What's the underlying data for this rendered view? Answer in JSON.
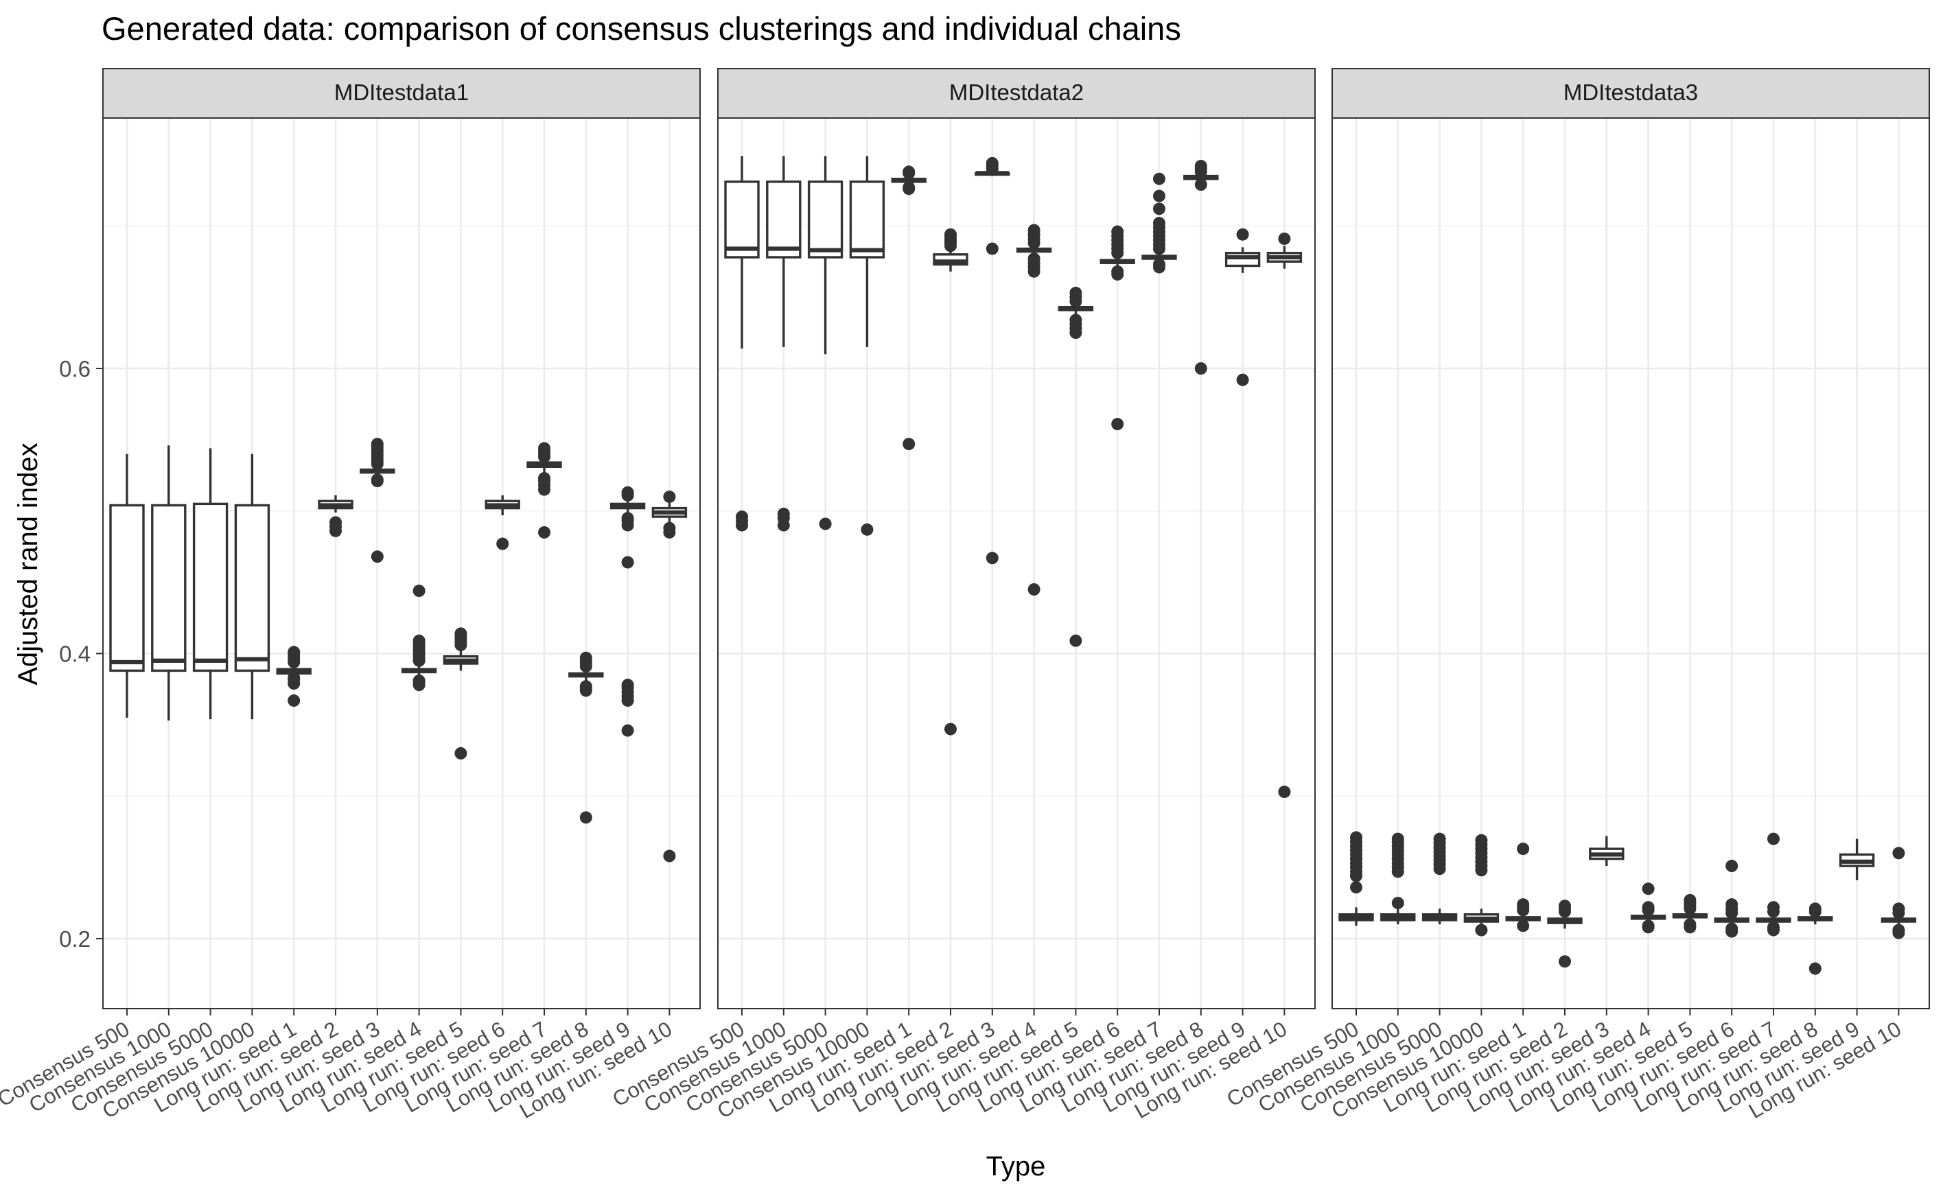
{
  "chart_data": {
    "type": "box",
    "title": "Generated data: comparison of consensus clusterings and individual chains",
    "xlabel": "Type",
    "ylabel": "Adjusted rand index",
    "ylim": [
      0.15,
      0.775
    ],
    "yticks": [
      0.2,
      0.4,
      0.6
    ],
    "ytick_labels": [
      "0.2",
      "0.4",
      "0.6"
    ],
    "categories": [
      "Consensus 500",
      "Consensus 1000",
      "Consensus 5000",
      "Consensus 10000",
      "Long run: seed 1",
      "Long run: seed 2",
      "Long run: seed 3",
      "Long run: seed 4",
      "Long run: seed 5",
      "Long run: seed 6",
      "Long run: seed 7",
      "Long run: seed 8",
      "Long run: seed 9",
      "Long run: seed 10"
    ],
    "panels": [
      {
        "name": "MDItestdata1",
        "boxes": [
          {
            "min": 0.355,
            "q1": 0.388,
            "median": 0.394,
            "q3": 0.504,
            "max": 0.54,
            "outliers": []
          },
          {
            "min": 0.353,
            "q1": 0.388,
            "median": 0.395,
            "q3": 0.504,
            "max": 0.546,
            "outliers": []
          },
          {
            "min": 0.354,
            "q1": 0.388,
            "median": 0.395,
            "q3": 0.505,
            "max": 0.544,
            "outliers": []
          },
          {
            "min": 0.354,
            "q1": 0.388,
            "median": 0.396,
            "q3": 0.504,
            "max": 0.54,
            "outliers": []
          },
          {
            "min": 0.381,
            "q1": 0.386,
            "median": 0.387,
            "q3": 0.389,
            "max": 0.393,
            "outliers": [
              0.367,
              0.379,
              0.382,
              0.383,
              0.394,
              0.396,
              0.398,
              0.4,
              0.401
            ]
          },
          {
            "min": 0.499,
            "q1": 0.502,
            "median": 0.504,
            "q3": 0.507,
            "max": 0.511,
            "outliers": [
              0.486,
              0.489,
              0.492
            ]
          },
          {
            "min": 0.523,
            "q1": 0.527,
            "median": 0.528,
            "q3": 0.529,
            "max": 0.531,
            "outliers": [
              0.468,
              0.521,
              0.522,
              0.533,
              0.535,
              0.537,
              0.539,
              0.541,
              0.543,
              0.545,
              0.547
            ]
          },
          {
            "min": 0.382,
            "q1": 0.387,
            "median": 0.388,
            "q3": 0.389,
            "max": 0.393,
            "outliers": [
              0.378,
              0.38,
              0.381,
              0.395,
              0.397,
              0.399,
              0.401,
              0.403,
              0.405,
              0.407,
              0.409,
              0.444
            ]
          },
          {
            "min": 0.388,
            "q1": 0.393,
            "median": 0.395,
            "q3": 0.398,
            "max": 0.404,
            "outliers": [
              0.33,
              0.406,
              0.408,
              0.41,
              0.412,
              0.414
            ]
          },
          {
            "min": 0.497,
            "q1": 0.502,
            "median": 0.504,
            "q3": 0.507,
            "max": 0.511,
            "outliers": [
              0.477
            ]
          },
          {
            "min": 0.525,
            "q1": 0.531,
            "median": 0.533,
            "q3": 0.534,
            "max": 0.536,
            "outliers": [
              0.485,
              0.515,
              0.518,
              0.521,
              0.523,
              0.538,
              0.54,
              0.542,
              0.544
            ]
          },
          {
            "min": 0.379,
            "q1": 0.384,
            "median": 0.385,
            "q3": 0.386,
            "max": 0.389,
            "outliers": [
              0.285,
              0.374,
              0.376,
              0.377,
              0.391,
              0.393,
              0.395,
              0.397
            ]
          },
          {
            "min": 0.497,
            "q1": 0.502,
            "median": 0.503,
            "q3": 0.505,
            "max": 0.509,
            "outliers": [
              0.346,
              0.367,
              0.37,
              0.373,
              0.376,
              0.378,
              0.464,
              0.49,
              0.493,
              0.495,
              0.511,
              0.513
            ]
          },
          {
            "min": 0.491,
            "q1": 0.496,
            "median": 0.499,
            "q3": 0.502,
            "max": 0.507,
            "outliers": [
              0.258,
              0.485,
              0.488,
              0.51
            ]
          }
        ]
      },
      {
        "name": "MDItestdata2",
        "boxes": [
          {
            "min": 0.614,
            "q1": 0.678,
            "median": 0.684,
            "q3": 0.731,
            "max": 0.749,
            "outliers": [
              0.49,
              0.493,
              0.496
            ]
          },
          {
            "min": 0.615,
            "q1": 0.678,
            "median": 0.684,
            "q3": 0.731,
            "max": 0.749,
            "outliers": [
              0.49,
              0.495,
              0.498
            ]
          },
          {
            "min": 0.61,
            "q1": 0.678,
            "median": 0.683,
            "q3": 0.731,
            "max": 0.749,
            "outliers": [
              0.491
            ]
          },
          {
            "min": 0.615,
            "q1": 0.678,
            "median": 0.683,
            "q3": 0.731,
            "max": 0.749,
            "outliers": [
              0.487
            ]
          },
          {
            "min": 0.729,
            "q1": 0.731,
            "median": 0.732,
            "q3": 0.733,
            "max": 0.735,
            "outliers": [
              0.547,
              0.726,
              0.727,
              0.737,
              0.738
            ]
          },
          {
            "min": 0.668,
            "q1": 0.673,
            "median": 0.675,
            "q3": 0.68,
            "max": 0.684,
            "outliers": [
              0.347,
              0.686,
              0.688,
              0.69,
              0.692,
              0.694
            ]
          },
          {
            "min": 0.735,
            "q1": 0.736,
            "median": 0.737,
            "q3": 0.737,
            "max": 0.738,
            "outliers": [
              0.467,
              0.684,
              0.74,
              0.742,
              0.744
            ]
          },
          {
            "min": 0.679,
            "q1": 0.682,
            "median": 0.683,
            "q3": 0.684,
            "max": 0.686,
            "outliers": [
              0.445,
              0.668,
              0.671,
              0.674,
              0.677,
              0.688,
              0.691,
              0.694,
              0.697
            ]
          },
          {
            "min": 0.637,
            "q1": 0.641,
            "median": 0.642,
            "q3": 0.643,
            "max": 0.645,
            "outliers": [
              0.409,
              0.625,
              0.628,
              0.631,
              0.634,
              0.647,
              0.65,
              0.653
            ]
          },
          {
            "min": 0.671,
            "q1": 0.674,
            "median": 0.675,
            "q3": 0.676,
            "max": 0.679,
            "outliers": [
              0.561,
              0.666,
              0.668,
              0.681,
              0.684,
              0.687,
              0.69,
              0.693,
              0.696
            ]
          },
          {
            "min": 0.674,
            "q1": 0.677,
            "median": 0.678,
            "q3": 0.679,
            "max": 0.682,
            "outliers": [
              0.671,
              0.673,
              0.684,
              0.687,
              0.69,
              0.693,
              0.696,
              0.699,
              0.702,
              0.712,
              0.721,
              0.733
            ]
          },
          {
            "min": 0.732,
            "q1": 0.733,
            "median": 0.734,
            "q3": 0.735,
            "max": 0.736,
            "outliers": [
              0.6,
              0.729,
              0.738,
              0.74,
              0.742
            ]
          },
          {
            "min": 0.667,
            "q1": 0.672,
            "median": 0.678,
            "q3": 0.681,
            "max": 0.685,
            "outliers": [
              0.592,
              0.694
            ]
          },
          {
            "min": 0.67,
            "q1": 0.675,
            "median": 0.678,
            "q3": 0.681,
            "max": 0.686,
            "outliers": [
              0.303,
              0.691
            ]
          }
        ]
      },
      {
        "name": "MDItestdata3",
        "boxes": [
          {
            "min": 0.209,
            "q1": 0.213,
            "median": 0.215,
            "q3": 0.217,
            "max": 0.222,
            "outliers": [
              0.236,
              0.244,
              0.247,
              0.25,
              0.253,
              0.256,
              0.259,
              0.262,
              0.265,
              0.268,
              0.271
            ]
          },
          {
            "min": 0.21,
            "q1": 0.213,
            "median": 0.215,
            "q3": 0.217,
            "max": 0.221,
            "outliers": [
              0.225,
              0.247,
              0.25,
              0.253,
              0.256,
              0.259,
              0.262,
              0.265,
              0.268,
              0.27
            ]
          },
          {
            "min": 0.21,
            "q1": 0.213,
            "median": 0.215,
            "q3": 0.217,
            "max": 0.221,
            "outliers": [
              0.249,
              0.252,
              0.255,
              0.258,
              0.261,
              0.264,
              0.267,
              0.27
            ]
          },
          {
            "min": 0.209,
            "q1": 0.212,
            "median": 0.214,
            "q3": 0.217,
            "max": 0.221,
            "outliers": [
              0.206,
              0.248,
              0.251,
              0.254,
              0.257,
              0.26,
              0.263,
              0.266,
              0.269
            ]
          },
          {
            "min": 0.21,
            "q1": 0.213,
            "median": 0.214,
            "q3": 0.215,
            "max": 0.218,
            "outliers": [
              0.209,
              0.22,
              0.222,
              0.224,
              0.263
            ]
          },
          {
            "min": 0.207,
            "q1": 0.211,
            "median": 0.212,
            "q3": 0.214,
            "max": 0.217,
            "outliers": [
              0.184,
              0.219,
              0.221,
              0.223
            ]
          },
          {
            "min": 0.251,
            "q1": 0.256,
            "median": 0.259,
            "q3": 0.263,
            "max": 0.272,
            "outliers": []
          },
          {
            "min": 0.211,
            "q1": 0.214,
            "median": 0.215,
            "q3": 0.216,
            "max": 0.218,
            "outliers": [
              0.208,
              0.209,
              0.22,
              0.222,
              0.235
            ]
          },
          {
            "min": 0.212,
            "q1": 0.215,
            "median": 0.216,
            "q3": 0.217,
            "max": 0.219,
            "outliers": [
              0.208,
              0.21,
              0.221,
              0.223,
              0.225,
              0.227
            ]
          },
          {
            "min": 0.21,
            "q1": 0.212,
            "median": 0.213,
            "q3": 0.214,
            "max": 0.216,
            "outliers": [
              0.205,
              0.207,
              0.218,
              0.221,
              0.224,
              0.251
            ]
          },
          {
            "min": 0.21,
            "q1": 0.212,
            "median": 0.213,
            "q3": 0.214,
            "max": 0.217,
            "outliers": [
              0.206,
              0.208,
              0.219,
              0.222,
              0.27
            ]
          },
          {
            "min": 0.21,
            "q1": 0.213,
            "median": 0.214,
            "q3": 0.215,
            "max": 0.217,
            "outliers": [
              0.179,
              0.219,
              0.221
            ]
          },
          {
            "min": 0.241,
            "q1": 0.251,
            "median": 0.254,
            "q3": 0.259,
            "max": 0.27,
            "outliers": []
          },
          {
            "min": 0.209,
            "q1": 0.212,
            "median": 0.213,
            "q3": 0.214,
            "max": 0.216,
            "outliers": [
              0.204,
              0.206,
              0.218,
              0.221,
              0.26
            ]
          }
        ]
      }
    ]
  }
}
